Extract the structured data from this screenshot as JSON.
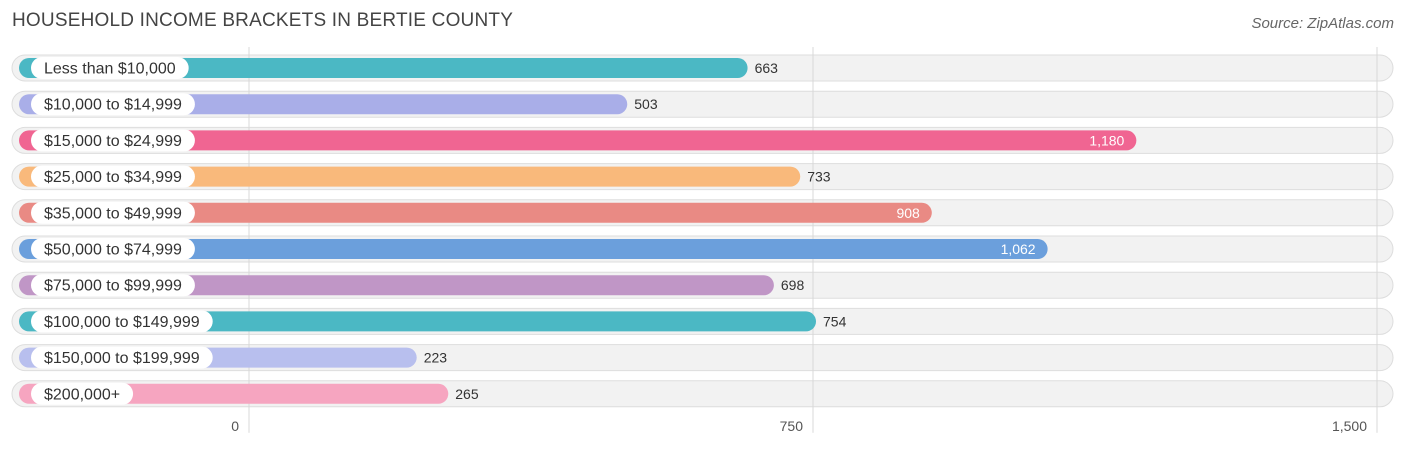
{
  "title": "HOUSEHOLD INCOME BRACKETS IN BERTIE COUNTY",
  "source": "Source: ZipAtlas.com",
  "chart_data": {
    "type": "bar",
    "orientation": "horizontal",
    "title": "HOUSEHOLD INCOME BRACKETS IN BERTIE COUNTY",
    "xlabel": "",
    "ylabel": "",
    "xlim": [
      0,
      1500
    ],
    "ticks": [
      0,
      750,
      1500
    ],
    "tick_labels": [
      "0",
      "750",
      "1,500"
    ],
    "categories": [
      "Less than $10,000",
      "$10,000 to $14,999",
      "$15,000 to $24,999",
      "$25,000 to $34,999",
      "$35,000 to $49,999",
      "$50,000 to $74,999",
      "$75,000 to $99,999",
      "$100,000 to $149,999",
      "$150,000 to $199,999",
      "$200,000+"
    ],
    "values": [
      663,
      503,
      1180,
      733,
      908,
      1062,
      698,
      754,
      223,
      265
    ],
    "value_labels": [
      "663",
      "503",
      "1,180",
      "733",
      "908",
      "1,062",
      "698",
      "754",
      "223",
      "265"
    ],
    "colors": [
      "#4bb8c4",
      "#a9aee8",
      "#f06592",
      "#f9b97b",
      "#e98a84",
      "#6b9fdc",
      "#c096c6",
      "#4bb8c4",
      "#b8bfee",
      "#f6a5c0"
    ]
  }
}
